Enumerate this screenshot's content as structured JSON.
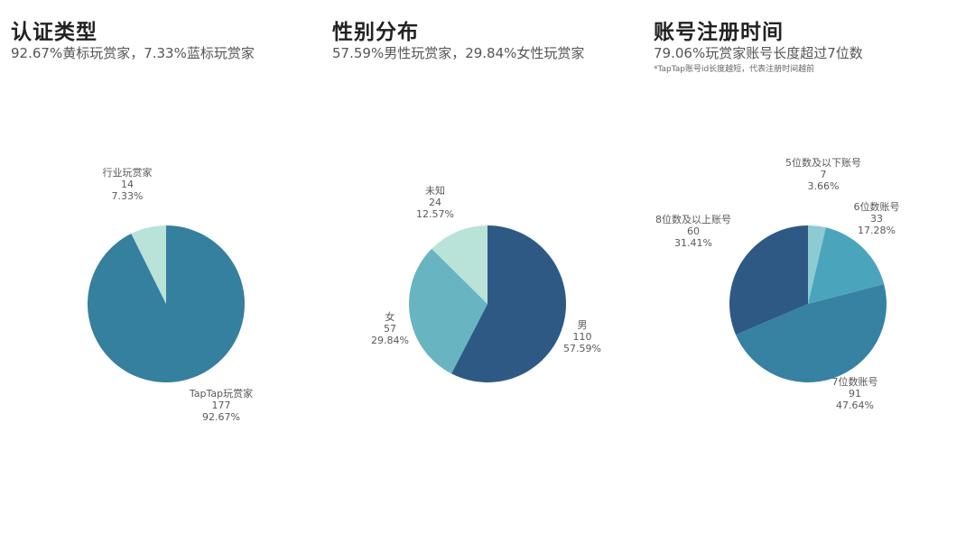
{
  "chart_data": [
    {
      "type": "pie",
      "title": "认证类型",
      "subtitle": "92.67%黄标玩赏家，7.33%蓝标玩赏家",
      "categories": [
        "TapTap玩赏家",
        "行业玩赏家"
      ],
      "values": [
        177,
        14
      ],
      "percents": [
        "92.67%",
        "7.33%"
      ],
      "colors": [
        "#357f9f",
        "#b9e3d9"
      ]
    },
    {
      "type": "pie",
      "title": "性别分布",
      "subtitle": "57.59%男性玩赏家，29.84%女性玩赏家",
      "categories": [
        "男",
        "女",
        "未知"
      ],
      "values": [
        110,
        57,
        24
      ],
      "percents": [
        "57.59%",
        "29.84%",
        "12.57%"
      ],
      "colors": [
        "#2e5985",
        "#69b4c1",
        "#b9e3d9"
      ]
    },
    {
      "type": "pie",
      "title": "账号注册时间",
      "subtitle": "79.06%玩赏家账号长度超过7位数",
      "footnote": "*TapTap账号id长度越短，代表注册时间越前",
      "categories": [
        "5位数及以下账号",
        "6位数账号",
        "7位数账号",
        "8位数及以上账号"
      ],
      "values": [
        7,
        33,
        91,
        60
      ],
      "percents": [
        "3.66%",
        "17.28%",
        "47.64%",
        "31.41%"
      ],
      "colors": [
        "#8ccbd2",
        "#4aa5bc",
        "#3781a3",
        "#2e5985"
      ]
    }
  ]
}
